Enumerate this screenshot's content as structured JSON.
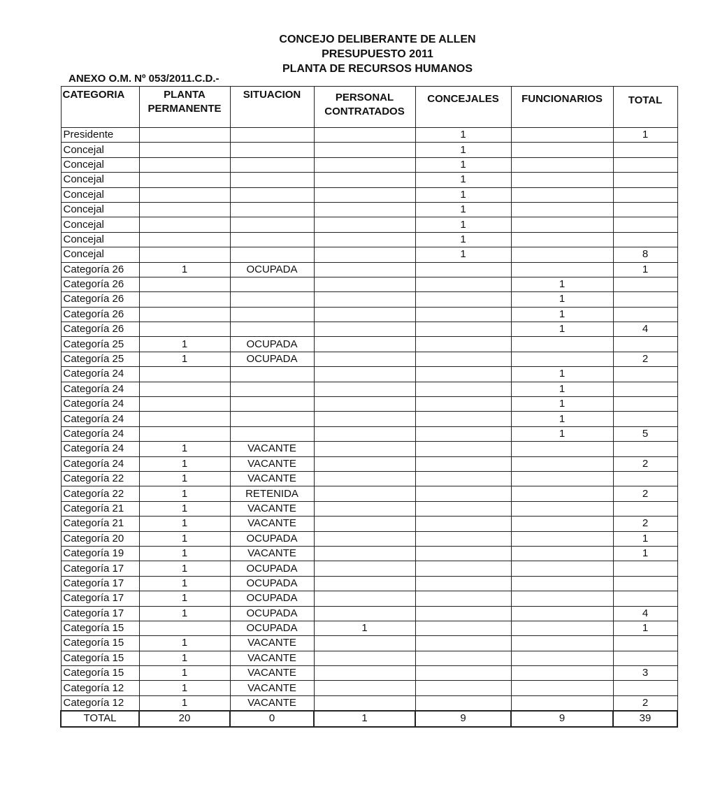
{
  "header": {
    "title_line1": "CONCEJO DELIBERANTE DE ALLEN",
    "title_line2": "PRESUPUESTO  2011",
    "title_line3": "PLANTA DE RECURSOS HUMANOS",
    "annex": "ANEXO O.M. Nº 053/2011.C.D.-"
  },
  "table": {
    "columns": [
      "CATEGORIA",
      "PLANTA PERMANENTE",
      "SITUACION",
      "PERSONAL CONTRATADOS",
      "CONCEJALES",
      "FUNCIONARIOS",
      "TOTAL"
    ],
    "rows": [
      [
        "Presidente",
        "",
        "",
        "",
        "1",
        "",
        "1"
      ],
      [
        "Concejal",
        "",
        "",
        "",
        "1",
        "",
        ""
      ],
      [
        "Concejal",
        "",
        "",
        "",
        "1",
        "",
        ""
      ],
      [
        "Concejal",
        "",
        "",
        "",
        "1",
        "",
        ""
      ],
      [
        "Concejal",
        "",
        "",
        "",
        "1",
        "",
        ""
      ],
      [
        "Concejal",
        "",
        "",
        "",
        "1",
        "",
        ""
      ],
      [
        "Concejal",
        "",
        "",
        "",
        "1",
        "",
        ""
      ],
      [
        "Concejal",
        "",
        "",
        "",
        "1",
        "",
        ""
      ],
      [
        "Concejal",
        "",
        "",
        "",
        "1",
        "",
        "8"
      ],
      [
        "Categoría 26",
        "1",
        "OCUPADA",
        "",
        "",
        "",
        "1"
      ],
      [
        "Categoría 26",
        "",
        "",
        "",
        "",
        "1",
        ""
      ],
      [
        "Categoría 26",
        "",
        "",
        "",
        "",
        "1",
        ""
      ],
      [
        "Categoría 26",
        "",
        "",
        "",
        "",
        "1",
        ""
      ],
      [
        "Categoría 26",
        "",
        "",
        "",
        "",
        "1",
        "4"
      ],
      [
        "Categoría 25",
        "1",
        "OCUPADA",
        "",
        "",
        "",
        ""
      ],
      [
        "Categoría 25",
        "1",
        "OCUPADA",
        "",
        "",
        "",
        "2"
      ],
      [
        "Categoría 24",
        "",
        "",
        "",
        "",
        "1",
        ""
      ],
      [
        "Categoría 24",
        "",
        "",
        "",
        "",
        "1",
        ""
      ],
      [
        "Categoría 24",
        "",
        "",
        "",
        "",
        "1",
        ""
      ],
      [
        "Categoría 24",
        "",
        "",
        "",
        "",
        "1",
        ""
      ],
      [
        "Categoría 24",
        "",
        "",
        "",
        "",
        "1",
        "5"
      ],
      [
        "Categoría 24",
        "1",
        "VACANTE",
        "",
        "",
        "",
        ""
      ],
      [
        "Categoría 24",
        "1",
        "VACANTE",
        "",
        "",
        "",
        "2"
      ],
      [
        "Categoría 22",
        "1",
        "VACANTE",
        "",
        "",
        "",
        ""
      ],
      [
        "Categoría 22",
        "1",
        "RETENIDA",
        "",
        "",
        "",
        "2"
      ],
      [
        "Categoría 21",
        "1",
        "VACANTE",
        "",
        "",
        "",
        ""
      ],
      [
        "Categoría 21",
        "1",
        "VACANTE",
        "",
        "",
        "",
        "2"
      ],
      [
        "Categoría 20",
        "1",
        "OCUPADA",
        "",
        "",
        "",
        "1"
      ],
      [
        "Categoría 19",
        "1",
        "VACANTE",
        "",
        "",
        "",
        "1"
      ],
      [
        "Categoría 17",
        "1",
        "OCUPADA",
        "",
        "",
        "",
        ""
      ],
      [
        "Categoría 17",
        "1",
        "OCUPADA",
        "",
        "",
        "",
        ""
      ],
      [
        "Categoría 17",
        "1",
        "OCUPADA",
        "",
        "",
        "",
        ""
      ],
      [
        "Categoría 17",
        "1",
        "OCUPADA",
        "",
        "",
        "",
        "4"
      ],
      [
        "Categoría 15",
        "",
        "OCUPADA",
        "1",
        "",
        "",
        "1"
      ],
      [
        "Categoría 15",
        "1",
        "VACANTE",
        "",
        "",
        "",
        ""
      ],
      [
        "Categoría 15",
        "1",
        "VACANTE",
        "",
        "",
        "",
        ""
      ],
      [
        "Categoría 15",
        "1",
        "VACANTE",
        "",
        "",
        "",
        "3"
      ],
      [
        "Categoría 12",
        "1",
        "VACANTE",
        "",
        "",
        "",
        ""
      ],
      [
        "Categoría 12",
        "1",
        "VACANTE",
        "",
        "",
        "",
        "2"
      ]
    ],
    "totals": [
      "TOTAL",
      "20",
      "0",
      "1",
      "9",
      "9",
      "39"
    ]
  }
}
